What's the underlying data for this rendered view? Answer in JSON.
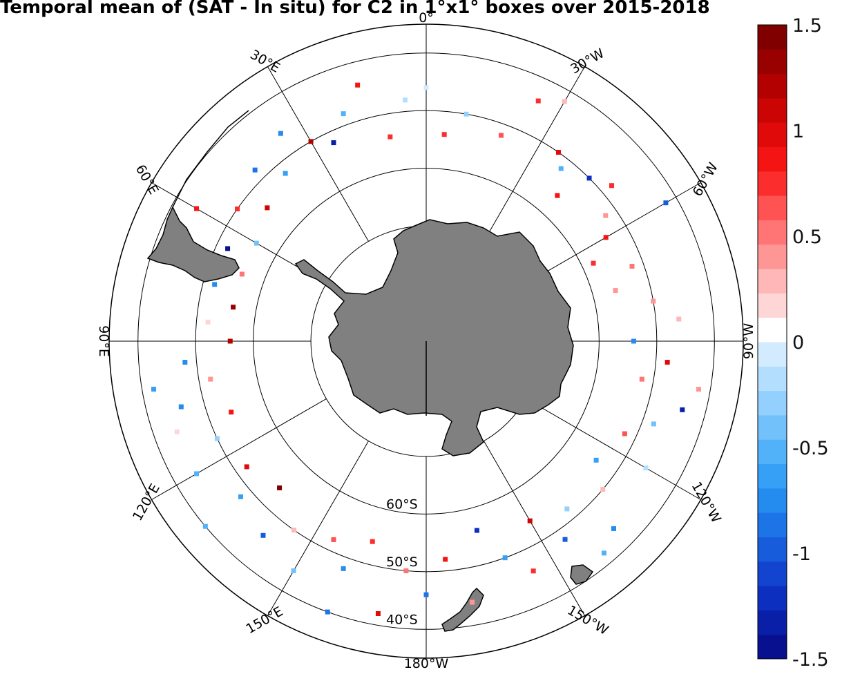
{
  "chart_data": {
    "type": "heatmap",
    "title": "Temporal mean of (SAT - In situ) for C2 in 1°x1° boxes over 2015-2018",
    "projection": "south polar stereographic",
    "longitude_labels": [
      "180°W",
      "150°W",
      "120°W",
      "90°W",
      "60°W",
      "30°W",
      "0°",
      "30°E",
      "60°E",
      "90°E",
      "120°E",
      "150°E"
    ],
    "latitude_labels": [
      "60°S",
      "50°S",
      "40°S"
    ],
    "colorbar": {
      "range": [
        -1.5,
        1.5
      ],
      "tick_labels": [
        "1.5",
        "1",
        "0.5",
        "0",
        "-0.5",
        "-1",
        "-1.5"
      ],
      "tick_values": [
        1.5,
        1,
        0.5,
        0,
        -0.5,
        -1,
        -1.5
      ],
      "colors": [
        "#08108f",
        "#0a1fa8",
        "#0d2fbf",
        "#1244cf",
        "#175cdb",
        "#1d74e6",
        "#248bef",
        "#35a0f6",
        "#52b2f9",
        "#72c1fb",
        "#93d0fd",
        "#b4defd",
        "#d3ebfe",
        "#ffffff",
        "#ffd6d6",
        "#ffb7b7",
        "#ff9696",
        "#ff7474",
        "#ff5252",
        "#fc2d2d",
        "#f41414",
        "#e10a0a",
        "#cb0404",
        "#b30000",
        "#990000",
        "#800000"
      ]
    },
    "points": [
      {
        "lon": -25,
        "lat": -44,
        "value": 0.8
      },
      {
        "lon": -35,
        "lat": -50,
        "value": 1.0
      },
      {
        "lon": -38,
        "lat": -52,
        "value": -0.5
      },
      {
        "lon": -45,
        "lat": -50,
        "value": -1.2
      },
      {
        "lon": -50,
        "lat": -48,
        "value": 0.7
      },
      {
        "lon": -55,
        "lat": -52,
        "value": 0.4
      },
      {
        "lon": -42,
        "lat": -56,
        "value": 0.9
      },
      {
        "lon": -20,
        "lat": -52,
        "value": 0.6
      },
      {
        "lon": -10,
        "lat": -50,
        "value": -0.3
      },
      {
        "lon": 0,
        "lat": -46,
        "value": -0.1
      },
      {
        "lon": 15,
        "lat": -44,
        "value": 0.9
      },
      {
        "lon": 20,
        "lat": -48,
        "value": -0.5
      },
      {
        "lon": 25,
        "lat": -52,
        "value": -1.3
      },
      {
        "lon": 30,
        "lat": -50,
        "value": 1.2
      },
      {
        "lon": 35,
        "lat": -46,
        "value": -0.8
      },
      {
        "lon": 40,
        "lat": -52,
        "value": -0.6
      },
      {
        "lon": 45,
        "lat": -48,
        "value": -0.9
      },
      {
        "lon": 50,
        "lat": -54,
        "value": 1.1
      },
      {
        "lon": 55,
        "lat": -50,
        "value": 0.8
      },
      {
        "lon": 60,
        "lat": -56,
        "value": -0.4
      },
      {
        "lon": 65,
        "lat": -52,
        "value": -1.4
      },
      {
        "lon": 70,
        "lat": -56,
        "value": 0.5
      },
      {
        "lon": 75,
        "lat": -52,
        "value": -0.7
      },
      {
        "lon": 80,
        "lat": -56,
        "value": 1.3
      },
      {
        "lon": 85,
        "lat": -52,
        "value": 0.2
      },
      {
        "lon": 90,
        "lat": -56,
        "value": 1.2
      },
      {
        "lon": 95,
        "lat": -48,
        "value": -0.8
      },
      {
        "lon": 100,
        "lat": -52,
        "value": 0.4
      },
      {
        "lon": 105,
        "lat": -46,
        "value": -0.7
      },
      {
        "lon": 110,
        "lat": -54,
        "value": 0.9
      },
      {
        "lon": 115,
        "lat": -50,
        "value": -0.3
      },
      {
        "lon": 120,
        "lat": -44,
        "value": -0.5
      },
      {
        "lon": 125,
        "lat": -52,
        "value": 1.0
      },
      {
        "lon": 130,
        "lat": -48,
        "value": -0.6
      },
      {
        "lon": 135,
        "lat": -54,
        "value": 1.4
      },
      {
        "lon": 140,
        "lat": -46,
        "value": -1.0
      },
      {
        "lon": 145,
        "lat": -50,
        "value": 0.3
      },
      {
        "lon": 150,
        "lat": -44,
        "value": -0.4
      },
      {
        "lon": 155,
        "lat": -52,
        "value": 0.6
      },
      {
        "lon": 160,
        "lat": -48,
        "value": -0.8
      },
      {
        "lon": 165,
        "lat": -54,
        "value": 0.7
      },
      {
        "lon": 170,
        "lat": -42,
        "value": 1.0
      },
      {
        "lon": 175,
        "lat": -50,
        "value": 0.5
      },
      {
        "lon": 180,
        "lat": -46,
        "value": -0.9
      },
      {
        "lon": -175,
        "lat": -52,
        "value": 0.9
      },
      {
        "lon": -170,
        "lat": -44,
        "value": 0.4
      },
      {
        "lon": -165,
        "lat": -56,
        "value": -1.2
      },
      {
        "lon": -160,
        "lat": -50,
        "value": -0.6
      },
      {
        "lon": -155,
        "lat": -46,
        "value": 0.8
      },
      {
        "lon": -150,
        "lat": -54,
        "value": 1.1
      },
      {
        "lon": -145,
        "lat": -48,
        "value": -1.0
      },
      {
        "lon": -140,
        "lat": -52,
        "value": -0.3
      },
      {
        "lon": -135,
        "lat": -44,
        "value": -0.7
      },
      {
        "lon": -130,
        "lat": -50,
        "value": 0.3
      },
      {
        "lon": -125,
        "lat": -54,
        "value": -0.6
      },
      {
        "lon": -120,
        "lat": -46,
        "value": -0.2
      },
      {
        "lon": -115,
        "lat": -52,
        "value": 0.6
      },
      {
        "lon": -110,
        "lat": -48,
        "value": -0.4
      },
      {
        "lon": -105,
        "lat": -44,
        "value": -1.3
      },
      {
        "lon": -100,
        "lat": -52,
        "value": 0.5
      },
      {
        "lon": -95,
        "lat": -48,
        "value": 1.0
      },
      {
        "lon": -90,
        "lat": -54,
        "value": -0.8
      },
      {
        "lon": -85,
        "lat": -46,
        "value": 0.3
      },
      {
        "lon": -80,
        "lat": -50,
        "value": 0.4
      },
      {
        "lon": -75,
        "lat": -56,
        "value": 0.4
      },
      {
        "lon": -70,
        "lat": -52,
        "value": 0.5
      },
      {
        "lon": -65,
        "lat": -58,
        "value": 0.8
      },
      {
        "lon": -60,
        "lat": -54,
        "value": 0.9
      },
      {
        "lon": 10,
        "lat": -54,
        "value": 0.7
      },
      {
        "lon": 5,
        "lat": -48,
        "value": -0.2
      },
      {
        "lon": -5,
        "lat": -54,
        "value": 0.8
      },
      {
        "lon": 60,
        "lat": -44,
        "value": 0.9
      },
      {
        "lon": 100,
        "lat": -42,
        "value": -0.6
      },
      {
        "lon": 110,
        "lat": -44,
        "value": 0.2
      },
      {
        "lon": 130,
        "lat": -40,
        "value": -0.5
      },
      {
        "lon": 160,
        "lat": -40,
        "value": -0.9
      },
      {
        "lon": -140,
        "lat": -42,
        "value": -0.5
      },
      {
        "lon": -100,
        "lat": -42,
        "value": 0.4
      },
      {
        "lon": -60,
        "lat": -42,
        "value": -1.0
      },
      {
        "lon": -30,
        "lat": -42,
        "value": 0.3
      }
    ]
  }
}
